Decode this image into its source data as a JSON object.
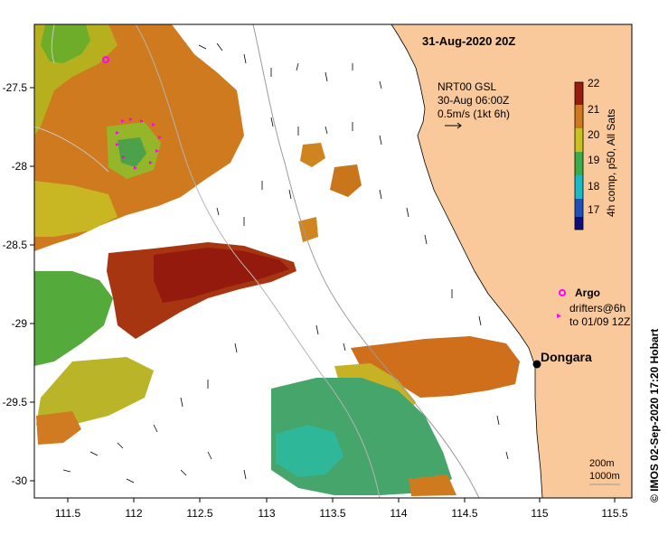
{
  "map": {
    "title": "31-Aug-2020 20Z",
    "product": {
      "line1": "NRT00 GSL",
      "line2": "30-Aug 06:00Z",
      "line3": "0.5m/s (1kt 6h)"
    },
    "colorbar": {
      "label": "4h comp, p50, All Sats",
      "ticks": [
        "22",
        "21",
        "20",
        "19",
        "18",
        "17"
      ],
      "min": 16.5,
      "max": 22
    },
    "legend": {
      "argo_label": "Argo",
      "drifter_line1": "drifters@6h",
      "drifter_line2": "to 01/09 12Z"
    },
    "place": {
      "name": "Dongara"
    },
    "scale": {
      "depth1": "200m",
      "depth2": "1000m"
    },
    "credit": "©  IMOS 02-Sep-2020 17:20 Hobart",
    "x_ticks": [
      "111.5",
      "112",
      "112.5",
      "113",
      "113.5",
      "114",
      "114.5",
      "115",
      "115.5"
    ],
    "y_ticks": [
      "-27.5",
      "-28",
      "-28.5",
      "-29",
      "-29.5",
      "-30"
    ],
    "colors": {
      "land": "#f9c99c",
      "argo": "#ff00ff",
      "drifter": "#ff00ff",
      "frame": "#000000"
    }
  }
}
